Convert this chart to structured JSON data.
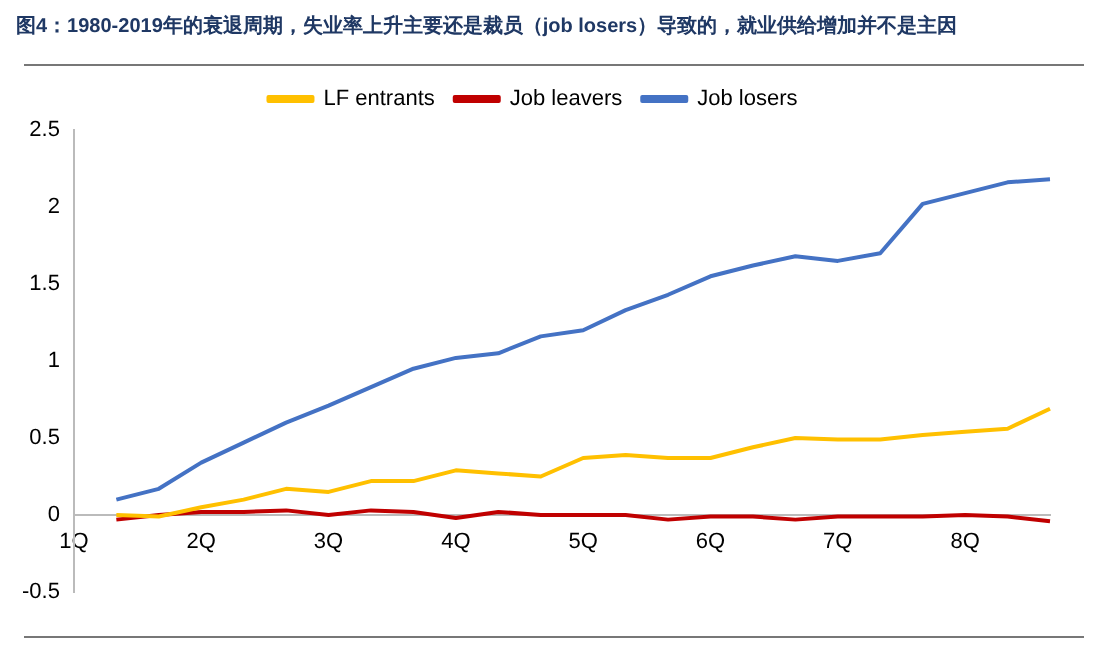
{
  "chart_data": {
    "type": "line",
    "title": "图4：1980-2019年的衰退周期，失业率上升主要还是裁员（job losers）导致的，就业供给增加并不是主因",
    "categories": [
      "1Q",
      null,
      null,
      "2Q",
      null,
      null,
      "3Q",
      null,
      null,
      "4Q",
      null,
      null,
      "5Q",
      null,
      null,
      "6Q",
      null,
      null,
      "7Q",
      null,
      null,
      "8Q",
      null,
      null
    ],
    "series": [
      {
        "name": "LF entrants",
        "color": "#ffc000",
        "values": [
          null,
          0.0,
          -0.01,
          0.05,
          0.1,
          0.17,
          0.15,
          0.22,
          0.22,
          0.29,
          0.27,
          0.25,
          0.37,
          0.39,
          0.37,
          0.37,
          0.44,
          0.5,
          0.49,
          0.49,
          0.52,
          0.54,
          0.56,
          0.69
        ]
      },
      {
        "name": "Job leavers",
        "color": "#c00000",
        "values": [
          null,
          -0.03,
          0,
          0.02,
          0.02,
          0.03,
          0,
          0.03,
          0.02,
          -0.02,
          0.02,
          0,
          0,
          0,
          -0.03,
          -0.01,
          -0.01,
          -0.03,
          -0.01,
          -0.01,
          -0.01,
          0,
          -0.01,
          -0.04
        ]
      },
      {
        "name": "Job losers",
        "color": "#4472c4",
        "values": [
          null,
          0.1,
          0.17,
          0.34,
          0.47,
          0.6,
          0.71,
          0.83,
          0.95,
          1.02,
          1.05,
          1.16,
          1.2,
          1.33,
          1.43,
          1.55,
          1.62,
          1.68,
          1.65,
          1.7,
          2.02,
          2.09,
          2.16,
          2.18
        ]
      }
    ],
    "ylim": [
      -0.5,
      2.5
    ],
    "yticks": [
      -0.5,
      0,
      0.5,
      1,
      1.5,
      2,
      2.5
    ],
    "grid": false,
    "legend": "top",
    "marker": "none",
    "line_style": "solid"
  }
}
